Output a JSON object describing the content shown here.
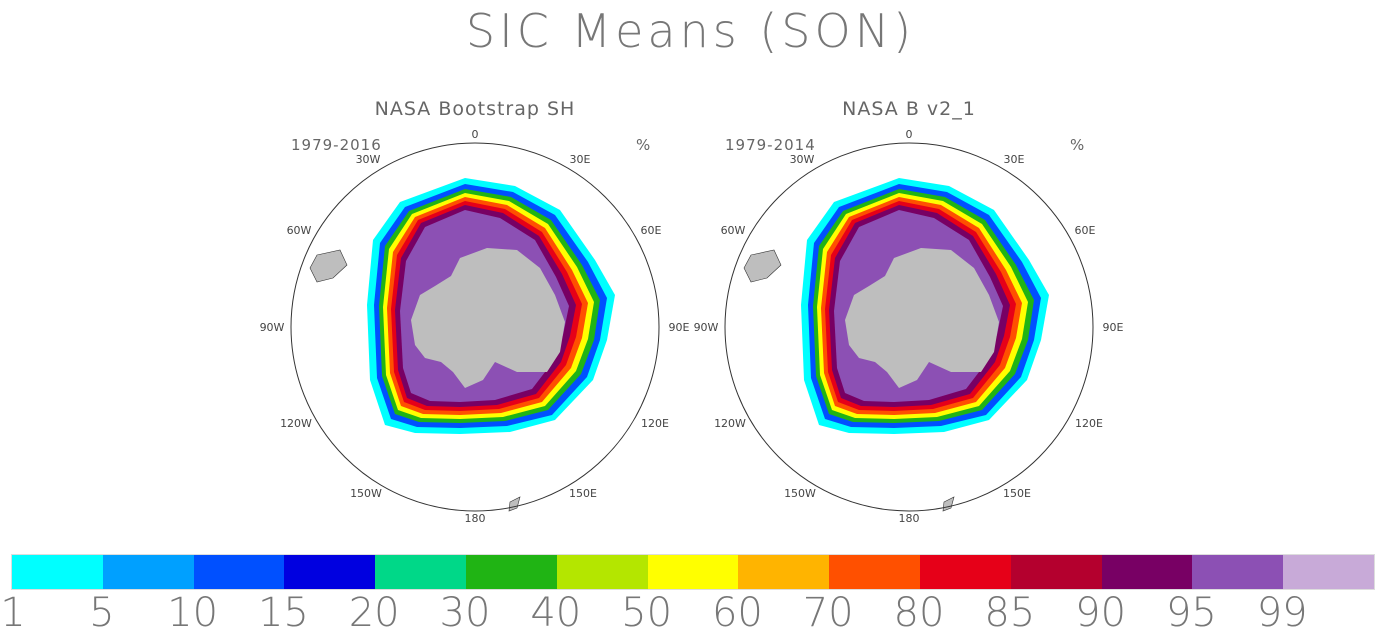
{
  "title": "SIC Means (SON)",
  "unit": "%",
  "panels": [
    {
      "title": "NASA Bootstrap SH",
      "years": "1979-2016"
    },
    {
      "title": "NASA B v2_1",
      "years": "1979-2014"
    }
  ],
  "lon_labels": {
    "l0": "0",
    "l30e": "30E",
    "l60e": "60E",
    "l90e": "90E",
    "l120e": "120E",
    "l150e": "150E",
    "l180": "180",
    "l150w": "150W",
    "l120w": "120W",
    "l90w": "90W",
    "l60w": "60W",
    "l30w": "30W"
  },
  "colorbar": {
    "colors": [
      "#00ffff",
      "#00a0ff",
      "#0050ff",
      "#0000e0",
      "#00d888",
      "#20b414",
      "#b4e600",
      "#ffff00",
      "#ffb400",
      "#ff5000",
      "#e60018",
      "#b4002e",
      "#780064",
      "#8c50b4",
      "#c8aad8"
    ],
    "labels": [
      "1",
      "5",
      "10",
      "15",
      "20",
      "30",
      "40",
      "50",
      "60",
      "70",
      "80",
      "85",
      "90",
      "95",
      "99"
    ]
  },
  "colors": {
    "land": "#bebebe",
    "ocean": "#ffffff",
    "outline": "#333333"
  }
}
